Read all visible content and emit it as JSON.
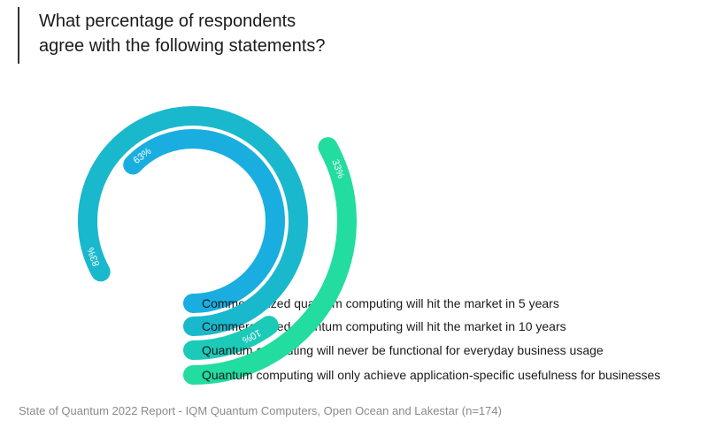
{
  "title_lines": [
    "What percentage of respondents",
    "agree with the following statements?"
  ],
  "source": "State of Quantum 2022 Report - IQM Quantum Computers, Open Ocean and Lakestar (n=174)",
  "chart_data": {
    "type": "radial-bar",
    "title": "What percentage of respondents agree with the following statements?",
    "unit": "%",
    "series": [
      {
        "label": "Commercialized quantum computing will hit the market in 5 years",
        "value": 63,
        "value_label": "63%",
        "color": "#1aaee0"
      },
      {
        "label": "Commercialized quantum computing will hit the market in 10 years",
        "value": 83,
        "value_label": "83%",
        "color": "#1ab8cc"
      },
      {
        "label": "Quantum computing will never be functional for everyday business usage",
        "value": 10,
        "value_label": "10%",
        "color": "#1ccab8"
      },
      {
        "label": "Quantum computing will only achieve application-specific usefulness for businesses",
        "value": 33,
        "value_label": "33%",
        "color": "#22dca0"
      }
    ]
  }
}
